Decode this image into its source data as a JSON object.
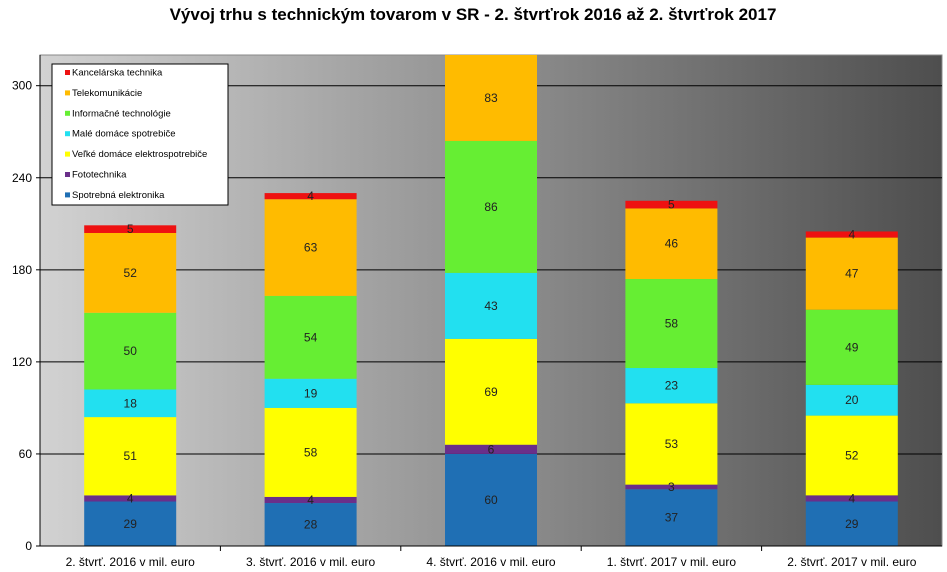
{
  "chart_data": {
    "type": "bar",
    "stacked": true,
    "title": "Vývoj trhu s technickým tovarom v SR - 2. štvrťrok 2016 až 2. štvrťrok  2017",
    "xlabel": "",
    "ylabel": "",
    "ylim": [
      0,
      320
    ],
    "yticks": [
      0,
      60,
      120,
      180,
      240,
      300
    ],
    "grid": true,
    "legend_position": "top-left",
    "categories": [
      "2. štvrť. 2016 v mil. euro",
      "3. štvrť. 2016 v mil. euro",
      "4. štvrť. 2016 v mil. euro",
      "1. štvrť. 2017 v mil. euro",
      "2. štvrť. 2017 v mil. euro"
    ],
    "series": [
      {
        "name": "Spotrebná elektronika",
        "color": "#1f6fb4",
        "values": [
          29,
          28,
          60,
          37,
          29
        ]
      },
      {
        "name": "Fototechnika",
        "color": "#6a2f8a",
        "values": [
          4,
          4,
          6,
          3,
          4
        ]
      },
      {
        "name": "Veľké domáce elektrospotrebiče",
        "color": "#ffff00",
        "values": [
          51,
          58,
          69,
          53,
          52
        ]
      },
      {
        "name": "Malé domáce spotrebiče",
        "color": "#22e0f0",
        "values": [
          18,
          19,
          43,
          23,
          20
        ]
      },
      {
        "name": "Informačné technológie",
        "color": "#66ee33",
        "values": [
          50,
          54,
          86,
          58,
          49
        ]
      },
      {
        "name": "Telekomunikácie",
        "color": "#ffbb00",
        "values": [
          52,
          63,
          83,
          46,
          47
        ]
      },
      {
        "name": "Kancelárska technika",
        "color": "#ee1111",
        "values": [
          5,
          4,
          null,
          5,
          4
        ]
      }
    ]
  }
}
